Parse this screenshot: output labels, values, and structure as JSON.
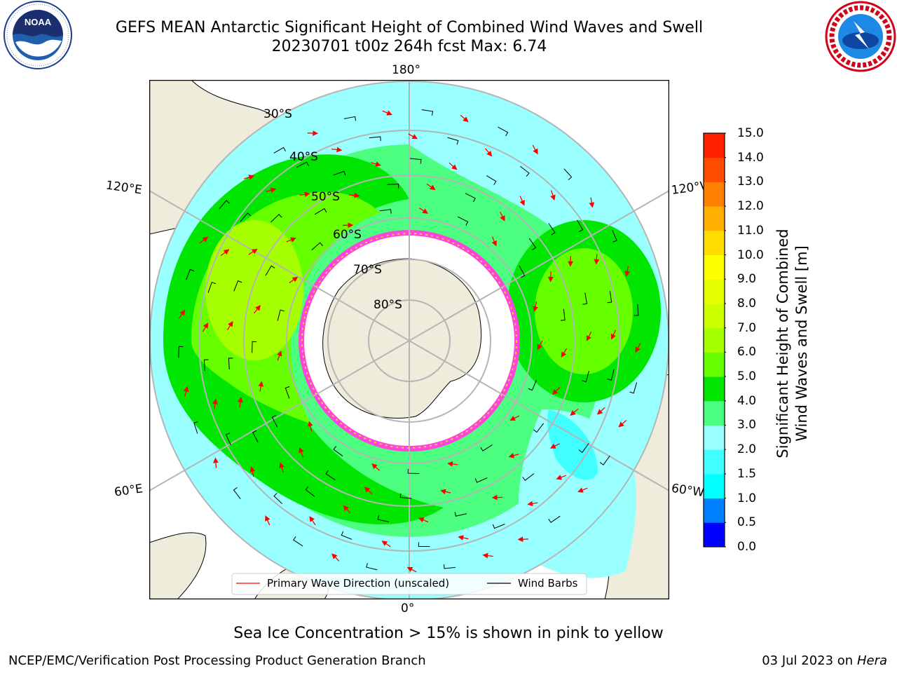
{
  "title": {
    "line1": "GEFS MEAN Antarctic Significant Height of Combined Wind Waves and Swell",
    "line2": "20230701 t00z 264h fcst   Max: 6.74"
  },
  "logos": {
    "noaa": {
      "text": "NOAA",
      "ring_text": "NATIONAL OCEANIC AND ATMOSPHERIC ADMINISTRATION · U.S. DEPARTMENT OF COMMERCE"
    },
    "nws": {
      "ring_text": "NATIONAL WEATHER SERVICE"
    }
  },
  "map": {
    "projection": "south-polar-stereographic",
    "longitude_labels": {
      "top": "180°",
      "bottom": "0°",
      "left_upper": "120°E",
      "left_lower": "60°E",
      "right_upper": "120°W",
      "right_lower": "60°W"
    },
    "latitude_labels": [
      "30°S",
      "40°S",
      "50°S",
      "60°S",
      "70°S",
      "80°S"
    ],
    "colors": {
      "land": "#efecdc",
      "ocean_edge": "#e0e0e0",
      "grid": "#b5b5b5",
      "ice_pink": "#ff44dd",
      "ice_yellow": "#ffcc33",
      "wave_arrow": "#ff0000",
      "wind_barb": "#000000"
    },
    "legend": {
      "wave_label": "Primary Wave Direction (unscaled)",
      "barb_label": "Wind Barbs"
    },
    "note": "Sea Ice Concentration > 15% is shown in pink to yellow"
  },
  "colorbar": {
    "label_line1": "Significant Height of Combined",
    "label_line2": "Wind Waves and Swell [m]",
    "ticks": [
      "15.0",
      "14.0",
      "13.0",
      "12.0",
      "11.0",
      "10.0",
      "9.0",
      "8.0",
      "7.0",
      "6.0",
      "5.0",
      "4.0",
      "3.0",
      "2.0",
      "1.5",
      "1.0",
      "0.5",
      "0.0"
    ],
    "bands_bottom_to_top": [
      "#0000ff",
      "#0080ff",
      "#00ffff",
      "#40ffff",
      "#99ffff",
      "#4dff80",
      "#00e600",
      "#66ff00",
      "#a6ff00",
      "#ccff00",
      "#e6ff00",
      "#ffff00",
      "#ffdd00",
      "#ffb000",
      "#ff8000",
      "#ff4d00",
      "#ff2000"
    ]
  },
  "footer": {
    "left": "NCEP/EMC/Verification Post Processing Product Generation Branch",
    "right_date": "03 Jul 2023 on",
    "right_host": "Hera"
  }
}
